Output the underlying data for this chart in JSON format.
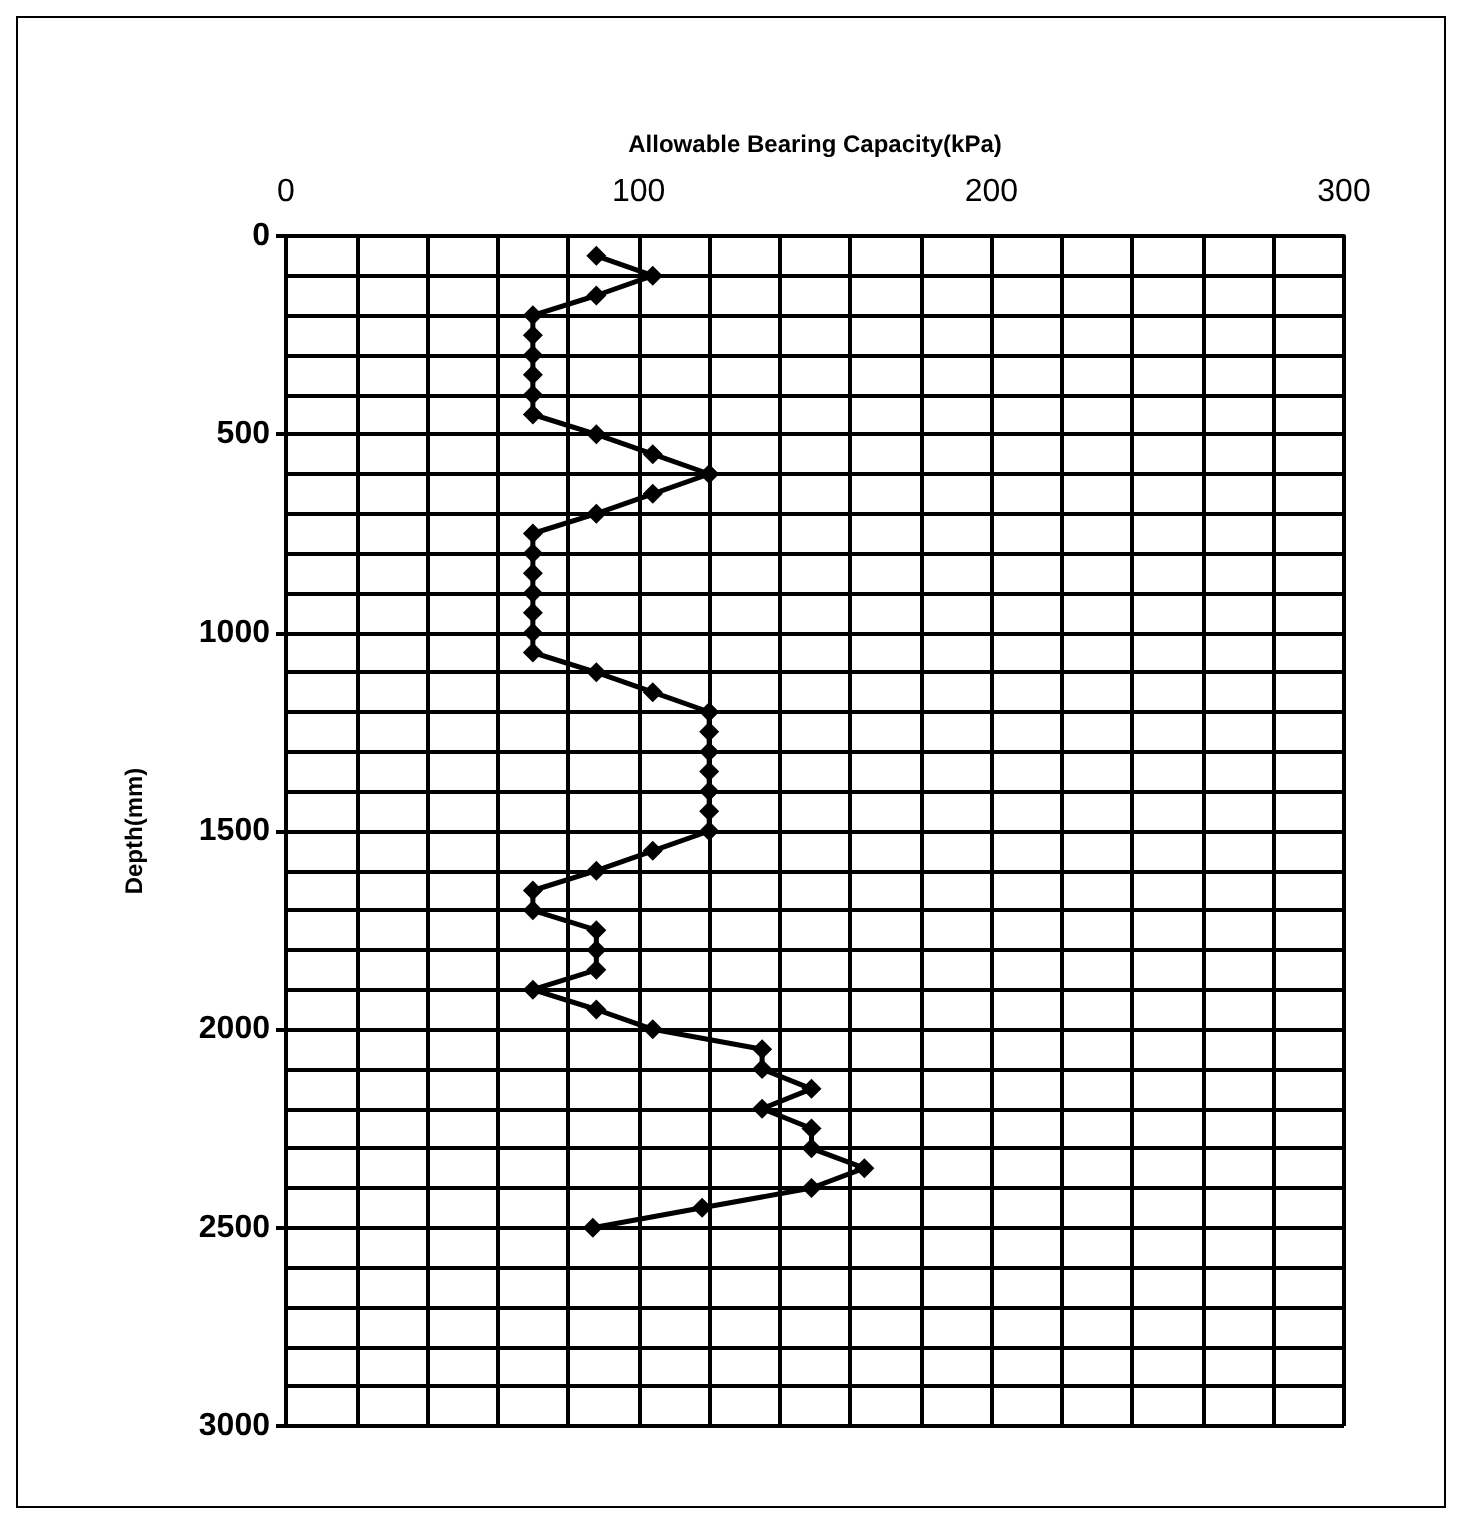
{
  "chart_data": {
    "type": "line",
    "xlabel": "Allowable Bearing Capacity(kPa)",
    "ylabel": "Depth(mm)",
    "xlim": [
      0,
      300
    ],
    "xticks": [
      0,
      100,
      200,
      300
    ],
    "ylim": [
      3000,
      0
    ],
    "yticks": [
      0,
      500,
      1000,
      1500,
      2000,
      2500,
      3000
    ],
    "grid": true,
    "marker": "diamond",
    "line_style": "solid",
    "series": [
      {
        "color": "#000000",
        "x": [
          88,
          104,
          88,
          70,
          70,
          70,
          70,
          70,
          70,
          88,
          104,
          120,
          104,
          88,
          70,
          70,
          70,
          70,
          70,
          70,
          70,
          88,
          104,
          120,
          120,
          120,
          120,
          120,
          120,
          120,
          104,
          88,
          70,
          70,
          88,
          88,
          88,
          70,
          88,
          104,
          135,
          135,
          149,
          135,
          149,
          149,
          164,
          149,
          118,
          87
        ],
        "values": [
          50,
          100,
          150,
          200,
          250,
          300,
          350,
          400,
          450,
          500,
          550,
          600,
          650,
          700,
          750,
          800,
          850,
          900,
          950,
          1000,
          1050,
          1100,
          1150,
          1200,
          1250,
          1300,
          1350,
          1400,
          1450,
          1500,
          1550,
          1600,
          1650,
          1700,
          1750,
          1800,
          1850,
          1900,
          1950,
          2000,
          2050,
          2100,
          2150,
          2200,
          2250,
          2300,
          2350,
          2400,
          2450,
          2500
        ]
      }
    ]
  }
}
